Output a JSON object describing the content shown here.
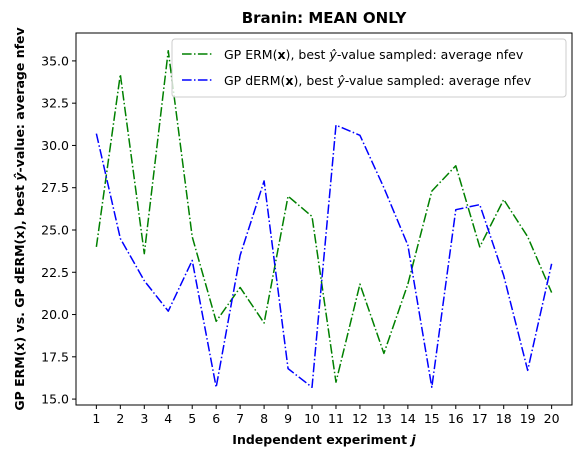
{
  "chart_data": {
    "type": "line",
    "title": "Branin: MEAN ONLY",
    "xlabel": "Independent experiment j",
    "ylabel": "GP ERM(x) vs. GP dERM(x), best ŷ-value: average nfev",
    "x": [
      1,
      2,
      3,
      4,
      5,
      6,
      7,
      8,
      9,
      10,
      11,
      12,
      13,
      14,
      15,
      16,
      17,
      18,
      19,
      20
    ],
    "xlim": [
      0.15,
      20.85
    ],
    "ylim": [
      14.65,
      36.65
    ],
    "yticks": [
      15.0,
      17.5,
      20.0,
      22.5,
      25.0,
      27.5,
      30.0,
      32.5,
      35.0
    ],
    "ytick_labels": [
      "15.0",
      "17.5",
      "20.0",
      "22.5",
      "25.0",
      "27.5",
      "30.0",
      "32.5",
      "35.0"
    ],
    "grid": false,
    "legend_position": "top-right",
    "series": [
      {
        "name": "GP ERM(x), best ŷ-value sampled: average nfev",
        "color": "#008000",
        "linestyle": "dashdot",
        "values": [
          24.0,
          34.2,
          23.6,
          35.6,
          24.6,
          19.6,
          21.6,
          19.5,
          27.0,
          25.8,
          16.0,
          21.8,
          17.7,
          21.8,
          27.3,
          28.8,
          24.0,
          26.8,
          24.6,
          21.3
        ]
      },
      {
        "name": "GP dERM(x), best ŷ-value sampled: average nfev",
        "color": "#0000ff",
        "linestyle": "dashdot",
        "values": [
          30.7,
          24.5,
          22.0,
          20.2,
          23.2,
          15.7,
          23.5,
          27.9,
          16.8,
          15.7,
          31.2,
          30.6,
          27.5,
          24.1,
          15.7,
          26.2,
          26.5,
          22.3,
          16.7,
          23.0
        ]
      }
    ]
  }
}
